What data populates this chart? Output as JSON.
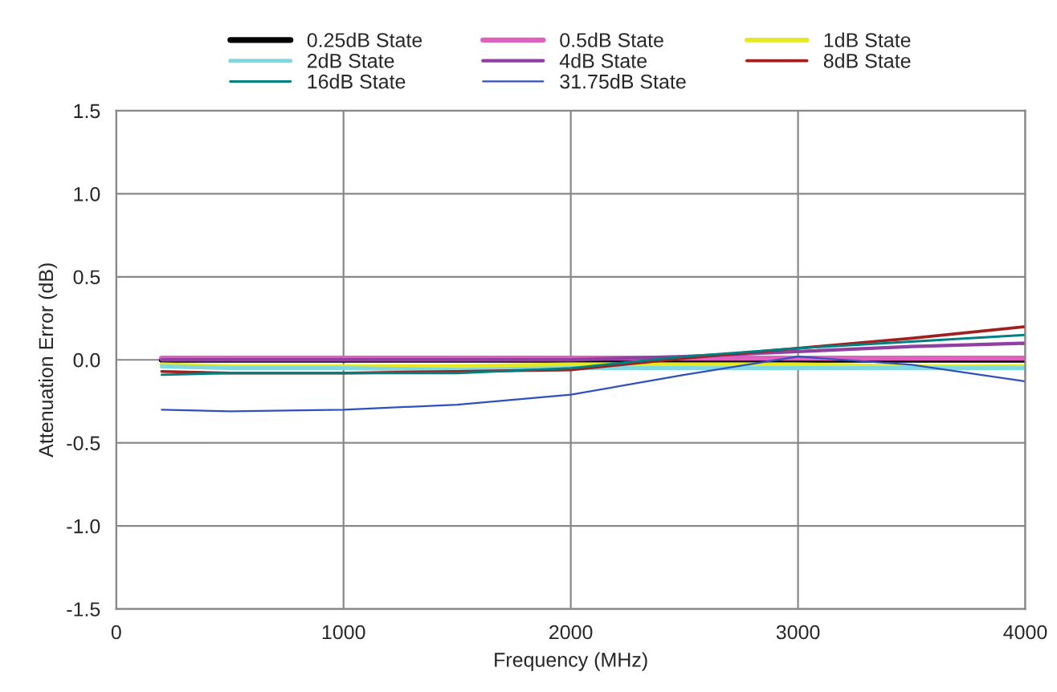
{
  "chart_data": {
    "type": "line",
    "xlabel": "Frequency (MHz)",
    "ylabel": "Attenuation Error (dB)",
    "xlim": [
      0,
      4000
    ],
    "xticks": [
      0,
      1000,
      2000,
      3000,
      4000
    ],
    "ylim": [
      -1.5,
      1.5
    ],
    "yticks": [
      {
        "value": -1.5,
        "label": "-1.5"
      },
      {
        "value": -1,
        "label": "-1.0"
      },
      {
        "value": -0.5,
        "label": "-0.5"
      },
      {
        "value": 0,
        "label": "0.0"
      },
      {
        "value": 0.5,
        "label": "0.5"
      },
      {
        "value": 1,
        "label": "1.0"
      },
      {
        "value": 1.5,
        "label": "1.5"
      }
    ],
    "grid": true,
    "legend": "top",
    "marker": "none",
    "line_style": "solid",
    "x": [
      200,
      500,
      1000,
      1500,
      2000,
      2500,
      3000,
      3500,
      4000
    ],
    "series": [
      {
        "name": "0.25dB State",
        "color": "#000000",
        "values": [
          0.0,
          0.0,
          0.0,
          0.0,
          0.0,
          0.0,
          0.0,
          0.0,
          0.0
        ]
      },
      {
        "name": "0.5dB State",
        "color": "#e060c0",
        "values": [
          0.01,
          0.01,
          0.01,
          0.01,
          0.01,
          0.01,
          0.01,
          0.01,
          0.01
        ]
      },
      {
        "name": "1dB State",
        "color": "#e8e820",
        "values": [
          -0.03,
          -0.04,
          -0.04,
          -0.04,
          -0.03,
          -0.03,
          -0.03,
          -0.04,
          -0.04
        ]
      },
      {
        "name": "2dB State",
        "color": "#80d8e0",
        "values": [
          -0.04,
          -0.05,
          -0.05,
          -0.06,
          -0.05,
          -0.05,
          -0.05,
          -0.05,
          -0.05
        ]
      },
      {
        "name": "4dB State",
        "color": "#9040a0",
        "values": [
          0.0,
          0.0,
          0.0,
          0.0,
          0.0,
          0.02,
          0.05,
          0.08,
          0.1
        ]
      },
      {
        "name": "8dB State",
        "color": "#a02020",
        "values": [
          -0.07,
          -0.08,
          -0.08,
          -0.07,
          -0.06,
          0.01,
          0.07,
          0.13,
          0.2
        ]
      },
      {
        "name": "16dB State",
        "color": "#008080",
        "values": [
          -0.09,
          -0.08,
          -0.08,
          -0.08,
          -0.05,
          0.02,
          0.07,
          0.11,
          0.15
        ]
      },
      {
        "name": "31.75dB State",
        "color": "#3050c0",
        "values": [
          -0.3,
          -0.31,
          -0.3,
          -0.27,
          -0.21,
          -0.09,
          0.02,
          -0.03,
          -0.13
        ]
      }
    ]
  }
}
